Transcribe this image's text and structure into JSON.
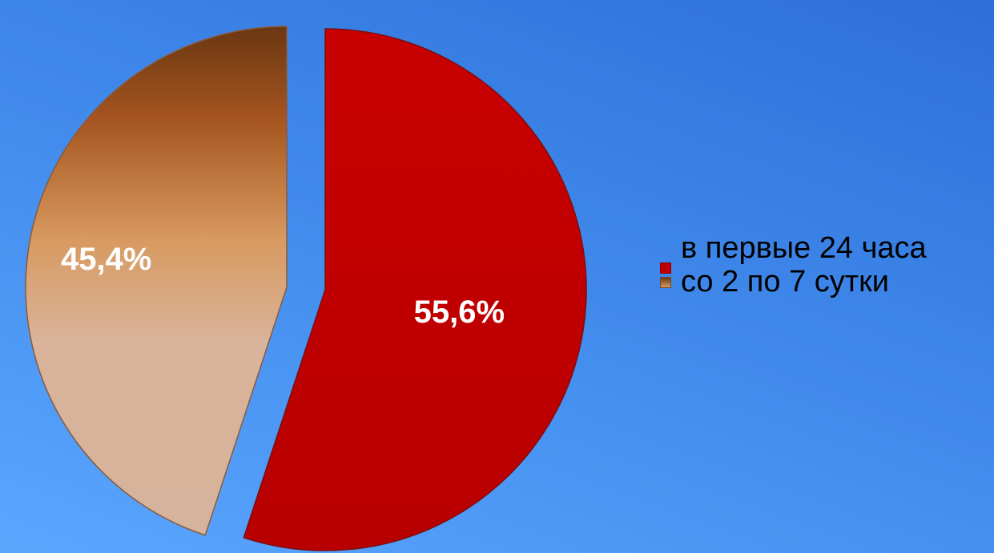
{
  "chart_data": {
    "type": "pie",
    "slices": [
      {
        "label": "в первые 24 часа",
        "value": 55.6,
        "display": "55,6%",
        "color": "#c00000"
      },
      {
        "label": "со 2 по 7 сутки",
        "value": 45.4,
        "display": "45,4%",
        "color": "#d7b49d"
      }
    ],
    "exploded": true,
    "legend_position": "right"
  }
}
